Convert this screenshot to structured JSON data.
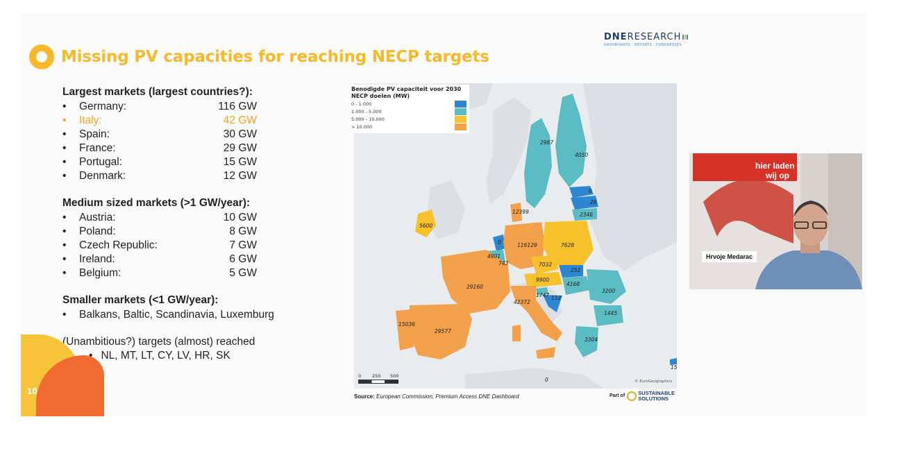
{
  "slide": {
    "title": "Missing PV capacities for reaching NECP targets",
    "page_number": "10",
    "logo": {
      "main_bold": "DNE",
      "main_light": "RESEARCH",
      "sub": "DASHBOARDS · REPORTS · CONGRESSES"
    },
    "largest": {
      "heading": "Largest markets (largest countries?):",
      "items": [
        {
          "name": "Germany:",
          "value": "116 GW"
        },
        {
          "name": "Italy:",
          "value": "42 GW"
        },
        {
          "name": "Spain:",
          "value": "30 GW"
        },
        {
          "name": "France:",
          "value": "29 GW"
        },
        {
          "name": "Portugal:",
          "value": "15 GW"
        },
        {
          "name": "Denmark:",
          "value": "12 GW"
        }
      ]
    },
    "medium": {
      "heading": "Medium sized markets (>1 GW/year):",
      "items": [
        {
          "name": "Austria:",
          "value": "10 GW"
        },
        {
          "name": "Poland:",
          "value": "8 GW"
        },
        {
          "name": "Czech Republic:",
          "value": "7 GW"
        },
        {
          "name": "Ireland:",
          "value": "6 GW"
        },
        {
          "name": "Belgium:",
          "value": "5 GW"
        }
      ]
    },
    "smaller": {
      "heading": "Smaller markets (<1 GW/year):",
      "items": [
        "Balkans, Baltic, Scandinavia, Luxemburg"
      ]
    },
    "unambitious": {
      "heading": "(Unambitious?) targets (almost) reached",
      "items": [
        "NL, MT, LT, CY, LV, HR, SK"
      ]
    },
    "bullet": "•",
    "map": {
      "legend_title": "Benodigde PV capaciteit voor 2030 NECP doelen (MW)",
      "legend": [
        {
          "label": "0 - 1.000",
          "color": "#2e86d1"
        },
        {
          "label": "1.000 - 5.000",
          "color": "#5bbcc4"
        },
        {
          "label": "5.000 - 10.000",
          "color": "#f6c12b"
        },
        {
          "label": "> 10.000",
          "color": "#f2a04a"
        }
      ],
      "scale": {
        "l0": "0",
        "l1": "250",
        "l2": "500 km"
      },
      "copyright": "© EuroGeographics",
      "labels": [
        "2987",
        "4050",
        "0",
        "28",
        "2346",
        "12399",
        "5600",
        "0",
        "116129",
        "7628",
        "4901",
        "743",
        "7032",
        "252",
        "9900",
        "4168",
        "3200",
        "29160",
        "42372",
        "1747",
        "112",
        "1445",
        "15036",
        "29577",
        "3304",
        "0",
        "15"
      ]
    },
    "source": {
      "label": "Source:",
      "text": "European Commission, Premium Access DNE Dashboard"
    },
    "partof": {
      "label": "Part of",
      "brand1": "SUSTAINABLE",
      "brand2": "SOLUTIONS"
    },
    "colors": {
      "accent": "#f7b92a",
      "highlight": "#f7a21c",
      "deco_orange": "#f06a32"
    }
  },
  "video": {
    "presenter_name": "Hrvoje Medarac",
    "banner_text_1": "hier laden",
    "banner_text_2": "wij op"
  }
}
